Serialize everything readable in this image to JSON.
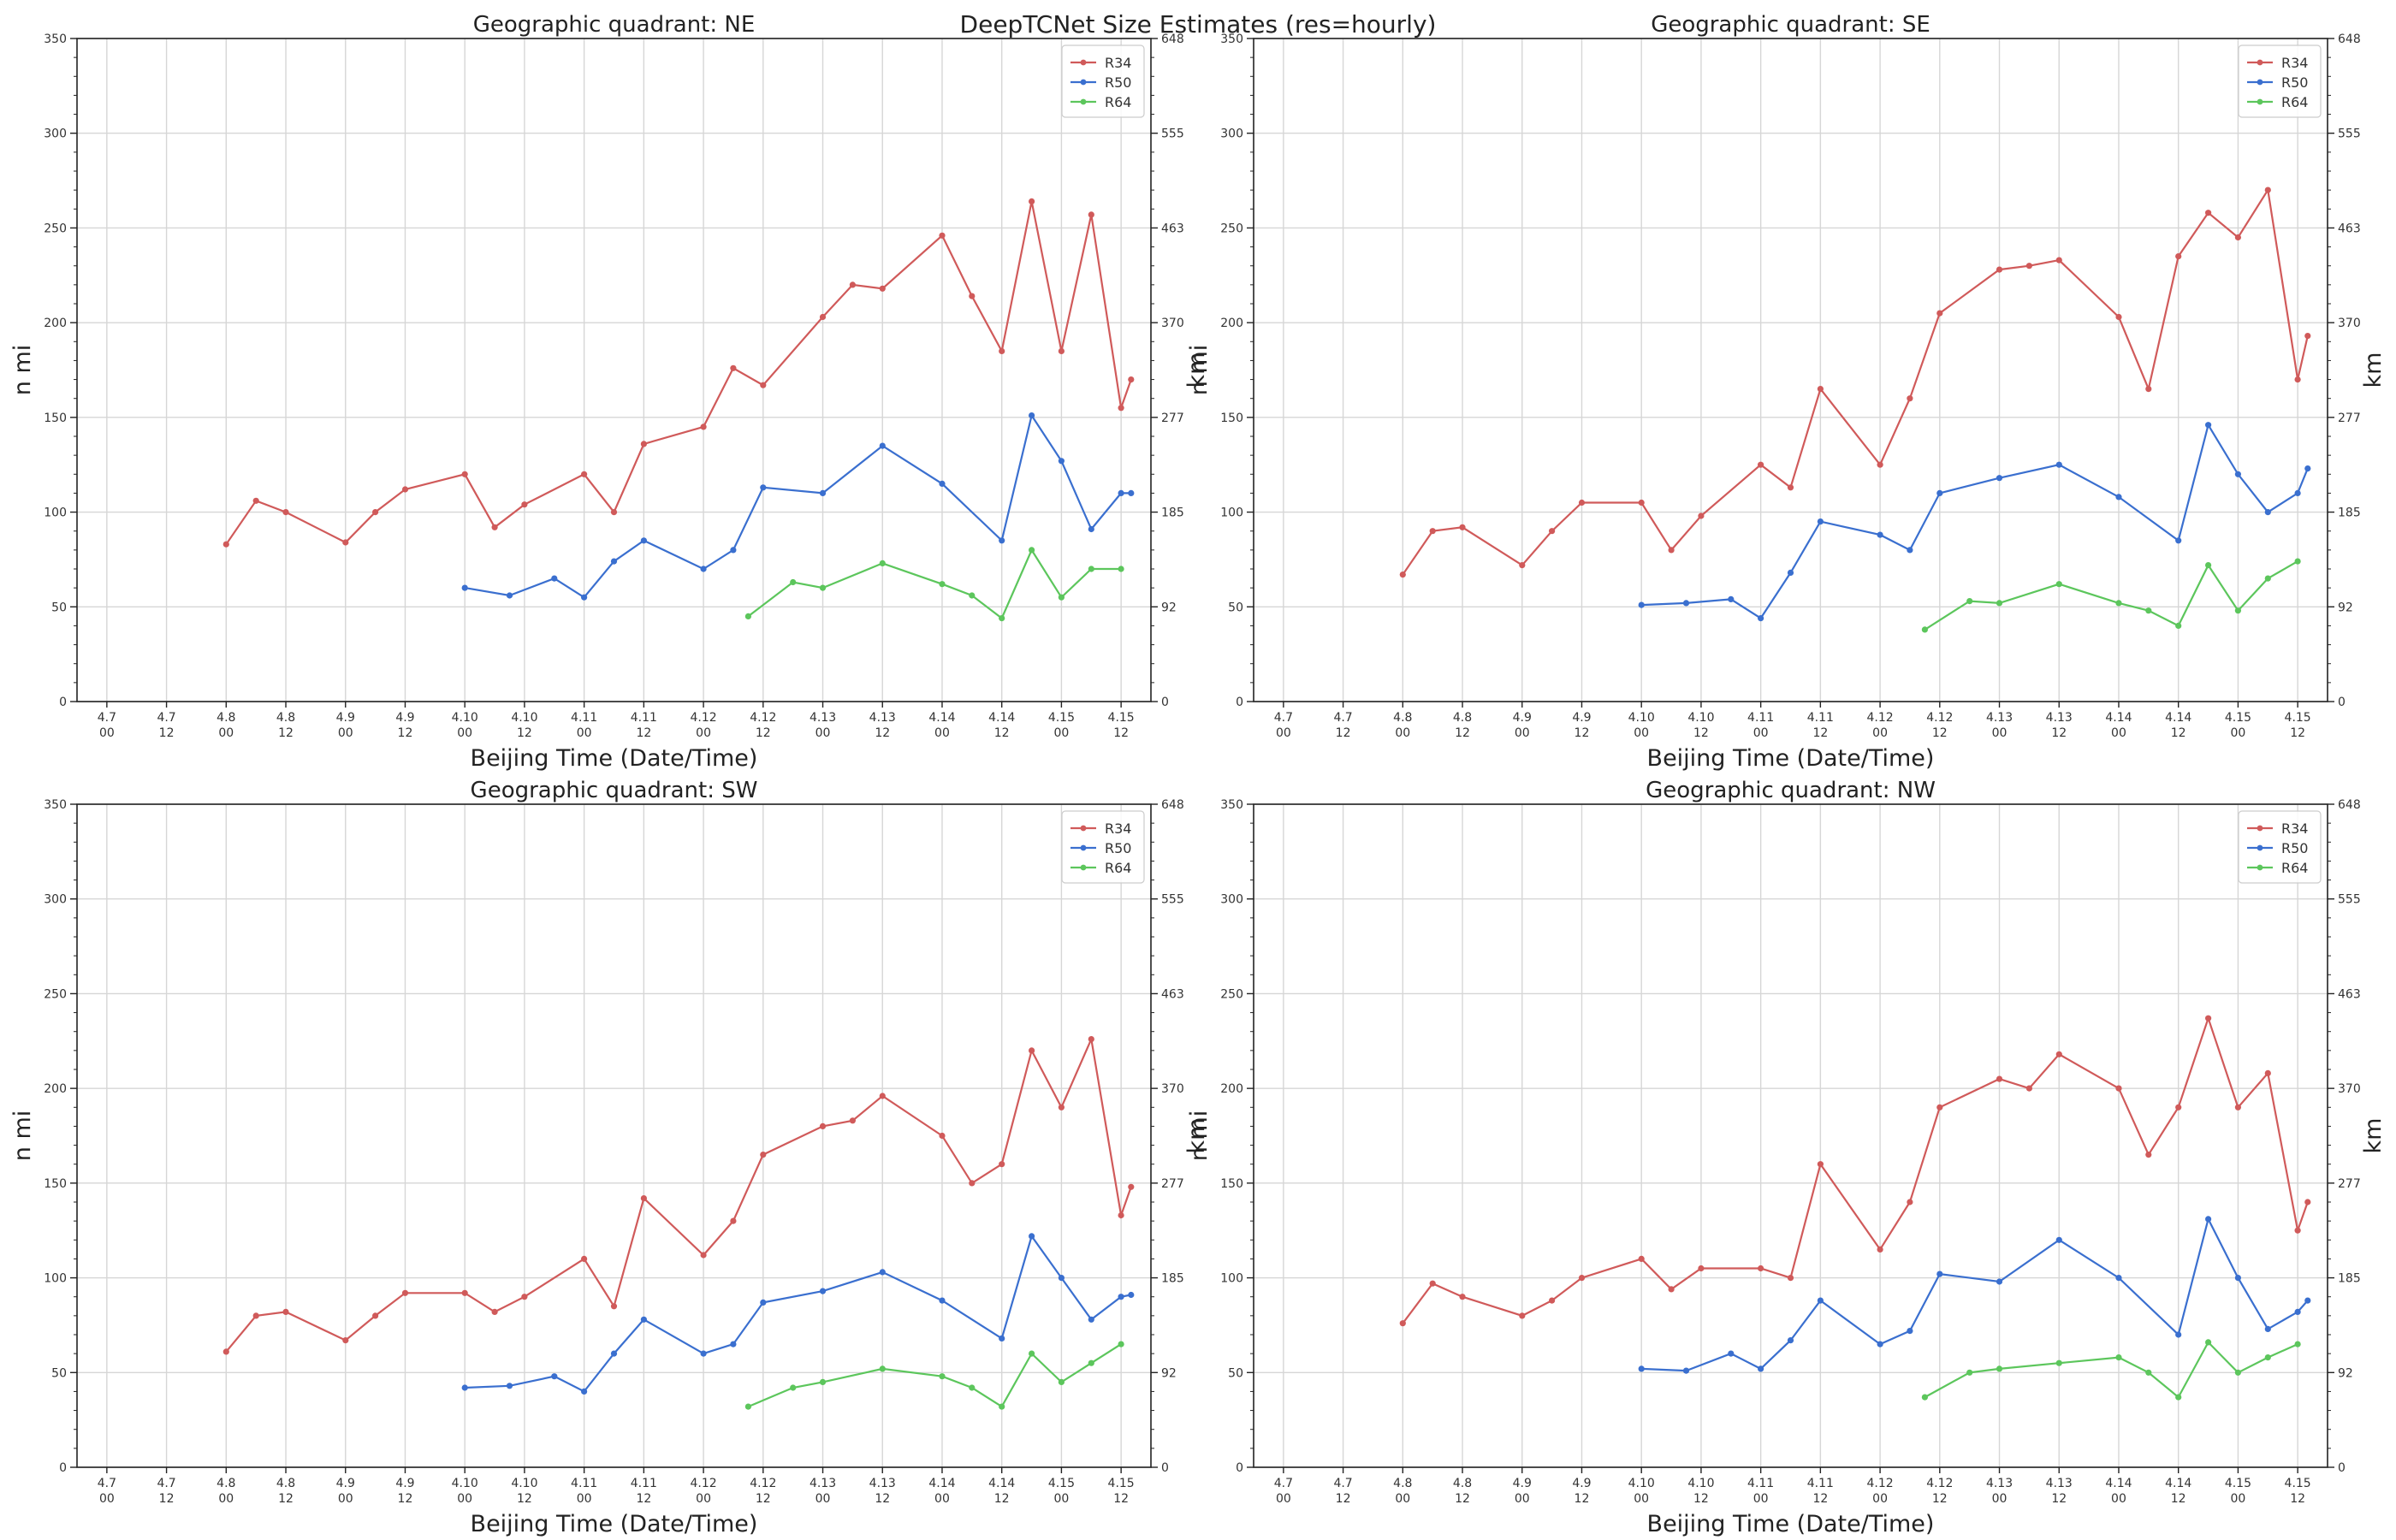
{
  "figure": {
    "title": "DeepTCNet Size Estimates (res=hourly)"
  },
  "chart_data": [
    {
      "type": "line",
      "title": "Geographic quadrant: NE",
      "xlabel": "Beijing Time (Date/Time)",
      "ylabel": "n mi",
      "y2label": "km",
      "ylim": [
        0,
        350
      ],
      "y_ticks": [
        "0",
        "50",
        "100",
        "150",
        "200",
        "250",
        "300",
        "350"
      ],
      "y2_ticks": [
        "0",
        "92",
        "185",
        "277",
        "370",
        "463",
        "555",
        "648"
      ],
      "x_ticks": [
        {
          "date": "4.7",
          "time": "00"
        },
        {
          "date": "4.7",
          "time": "12"
        },
        {
          "date": "4.8",
          "time": "00"
        },
        {
          "date": "4.8",
          "time": "12"
        },
        {
          "date": "4.9",
          "time": "00"
        },
        {
          "date": "4.9",
          "time": "12"
        },
        {
          "date": "4.10",
          "time": "00"
        },
        {
          "date": "4.10",
          "time": "12"
        },
        {
          "date": "4.11",
          "time": "00"
        },
        {
          "date": "4.11",
          "time": "12"
        },
        {
          "date": "4.12",
          "time": "00"
        },
        {
          "date": "4.12",
          "time": "12"
        },
        {
          "date": "4.13",
          "time": "00"
        },
        {
          "date": "4.13",
          "time": "12"
        },
        {
          "date": "4.14",
          "time": "00"
        },
        {
          "date": "4.14",
          "time": "12"
        },
        {
          "date": "4.15",
          "time": "00"
        },
        {
          "date": "4.15",
          "time": "12"
        }
      ],
      "grid": true,
      "legend": "top-right",
      "series": [
        {
          "name": "R34",
          "color": "#d05a5a",
          "x": [
            "4.8 00",
            "4.8 06",
            "4.8 12",
            "4.9 00",
            "4.9 06",
            "4.9 12",
            "4.10 00",
            "4.10 06",
            "4.10 12",
            "4.11 00",
            "4.11 06",
            "4.11 12",
            "4.12 00",
            "4.12 06",
            "4.12 12",
            "4.13 00",
            "4.13 06",
            "4.13 12",
            "4.14 00",
            "4.14 06",
            "4.14 12",
            "4.14 18",
            "4.15 00",
            "4.15 06",
            "4.15 12",
            "4.15 14"
          ],
          "values": [
            83,
            106,
            100,
            84,
            100,
            112,
            120,
            92,
            104,
            120,
            100,
            136,
            145,
            176,
            167,
            203,
            220,
            218,
            246,
            214,
            185,
            264,
            185,
            257,
            155,
            170
          ]
        },
        {
          "name": "R50",
          "color": "#3a6fcf",
          "x": [
            "4.10 00",
            "4.10 09",
            "4.10 18",
            "4.11 00",
            "4.11 06",
            "4.11 12",
            "4.12 00",
            "4.12 06",
            "4.12 12",
            "4.13 00",
            "4.13 12",
            "4.14 00",
            "4.14 12",
            "4.14 18",
            "4.15 00",
            "4.15 06",
            "4.15 12",
            "4.15 14"
          ],
          "values": [
            60,
            56,
            65,
            55,
            74,
            85,
            70,
            80,
            113,
            110,
            135,
            115,
            85,
            151,
            127,
            91,
            110,
            110
          ]
        },
        {
          "name": "R64",
          "color": "#5cc65c",
          "x": [
            "4.12 09",
            "4.12 18",
            "4.13 00",
            "4.13 12",
            "4.14 00",
            "4.14 06",
            "4.14 12",
            "4.14 18",
            "4.15 00",
            "4.15 06",
            "4.15 12"
          ],
          "values": [
            45,
            63,
            60,
            73,
            62,
            56,
            44,
            80,
            55,
            70,
            70
          ]
        }
      ]
    },
    {
      "type": "line",
      "title": "Geographic quadrant: SE",
      "xlabel": "Beijing Time (Date/Time)",
      "ylabel": "n mi",
      "y2label": "km",
      "ylim": [
        0,
        350
      ],
      "y_ticks": [
        "0",
        "50",
        "100",
        "150",
        "200",
        "250",
        "300",
        "350"
      ],
      "y2_ticks": [
        "0",
        "92",
        "185",
        "277",
        "370",
        "463",
        "555",
        "648"
      ],
      "x_ticks": [
        {
          "date": "4.7",
          "time": "00"
        },
        {
          "date": "4.7",
          "time": "12"
        },
        {
          "date": "4.8",
          "time": "00"
        },
        {
          "date": "4.8",
          "time": "12"
        },
        {
          "date": "4.9",
          "time": "00"
        },
        {
          "date": "4.9",
          "time": "12"
        },
        {
          "date": "4.10",
          "time": "00"
        },
        {
          "date": "4.10",
          "time": "12"
        },
        {
          "date": "4.11",
          "time": "00"
        },
        {
          "date": "4.11",
          "time": "12"
        },
        {
          "date": "4.12",
          "time": "00"
        },
        {
          "date": "4.12",
          "time": "12"
        },
        {
          "date": "4.13",
          "time": "00"
        },
        {
          "date": "4.13",
          "time": "12"
        },
        {
          "date": "4.14",
          "time": "00"
        },
        {
          "date": "4.14",
          "time": "12"
        },
        {
          "date": "4.15",
          "time": "00"
        },
        {
          "date": "4.15",
          "time": "12"
        }
      ],
      "grid": true,
      "legend": "top-right",
      "series": [
        {
          "name": "R34",
          "color": "#d05a5a",
          "x": [
            "4.8 00",
            "4.8 06",
            "4.8 12",
            "4.9 00",
            "4.9 06",
            "4.9 12",
            "4.10 00",
            "4.10 06",
            "4.10 12",
            "4.11 00",
            "4.11 06",
            "4.11 12",
            "4.12 00",
            "4.12 06",
            "4.12 12",
            "4.13 00",
            "4.13 06",
            "4.13 12",
            "4.14 00",
            "4.14 06",
            "4.14 12",
            "4.14 18",
            "4.15 00",
            "4.15 06",
            "4.15 12",
            "4.15 14"
          ],
          "values": [
            67,
            90,
            92,
            72,
            90,
            105,
            105,
            80,
            98,
            125,
            113,
            165,
            125,
            160,
            205,
            228,
            230,
            233,
            203,
            165,
            235,
            258,
            245,
            270,
            170,
            193
          ]
        },
        {
          "name": "R50",
          "color": "#3a6fcf",
          "x": [
            "4.10 00",
            "4.10 09",
            "4.10 18",
            "4.11 00",
            "4.11 06",
            "4.11 12",
            "4.12 00",
            "4.12 06",
            "4.12 12",
            "4.13 00",
            "4.13 12",
            "4.14 00",
            "4.14 12",
            "4.14 18",
            "4.15 00",
            "4.15 06",
            "4.15 12",
            "4.15 14"
          ],
          "values": [
            51,
            52,
            54,
            44,
            68,
            95,
            88,
            80,
            110,
            118,
            125,
            108,
            85,
            146,
            120,
            100,
            110,
            123
          ]
        },
        {
          "name": "R64",
          "color": "#5cc65c",
          "x": [
            "4.12 09",
            "4.12 18",
            "4.13 00",
            "4.13 12",
            "4.14 00",
            "4.14 06",
            "4.14 12",
            "4.14 18",
            "4.15 00",
            "4.15 06",
            "4.15 12"
          ],
          "values": [
            38,
            53,
            52,
            62,
            52,
            48,
            40,
            72,
            48,
            65,
            74
          ]
        }
      ]
    },
    {
      "type": "line",
      "title": "Geographic quadrant: SW",
      "xlabel": "Beijing Time (Date/Time)",
      "ylabel": "n mi",
      "y2label": "km",
      "ylim": [
        0,
        350
      ],
      "y_ticks": [
        "0",
        "50",
        "100",
        "150",
        "200",
        "250",
        "300",
        "350"
      ],
      "y2_ticks": [
        "0",
        "92",
        "185",
        "277",
        "370",
        "463",
        "555",
        "648"
      ],
      "x_ticks": [
        {
          "date": "4.7",
          "time": "00"
        },
        {
          "date": "4.7",
          "time": "12"
        },
        {
          "date": "4.8",
          "time": "00"
        },
        {
          "date": "4.8",
          "time": "12"
        },
        {
          "date": "4.9",
          "time": "00"
        },
        {
          "date": "4.9",
          "time": "12"
        },
        {
          "date": "4.10",
          "time": "00"
        },
        {
          "date": "4.10",
          "time": "12"
        },
        {
          "date": "4.11",
          "time": "00"
        },
        {
          "date": "4.11",
          "time": "12"
        },
        {
          "date": "4.12",
          "time": "00"
        },
        {
          "date": "4.12",
          "time": "12"
        },
        {
          "date": "4.13",
          "time": "00"
        },
        {
          "date": "4.13",
          "time": "12"
        },
        {
          "date": "4.14",
          "time": "00"
        },
        {
          "date": "4.14",
          "time": "12"
        },
        {
          "date": "4.15",
          "time": "00"
        },
        {
          "date": "4.15",
          "time": "12"
        }
      ],
      "grid": true,
      "legend": "top-right",
      "series": [
        {
          "name": "R34",
          "color": "#d05a5a",
          "x": [
            "4.8 00",
            "4.8 06",
            "4.8 12",
            "4.9 00",
            "4.9 06",
            "4.9 12",
            "4.10 00",
            "4.10 06",
            "4.10 12",
            "4.11 00",
            "4.11 06",
            "4.11 12",
            "4.12 00",
            "4.12 06",
            "4.12 12",
            "4.13 00",
            "4.13 06",
            "4.13 12",
            "4.14 00",
            "4.14 06",
            "4.14 12",
            "4.14 18",
            "4.15 00",
            "4.15 06",
            "4.15 12",
            "4.15 14"
          ],
          "values": [
            61,
            80,
            82,
            67,
            80,
            92,
            92,
            82,
            90,
            110,
            85,
            142,
            112,
            130,
            165,
            180,
            183,
            196,
            175,
            150,
            160,
            220,
            190,
            226,
            133,
            148
          ]
        },
        {
          "name": "R50",
          "color": "#3a6fcf",
          "x": [
            "4.10 00",
            "4.10 09",
            "4.10 18",
            "4.11 00",
            "4.11 06",
            "4.11 12",
            "4.12 00",
            "4.12 06",
            "4.12 12",
            "4.13 00",
            "4.13 12",
            "4.14 00",
            "4.14 12",
            "4.14 18",
            "4.15 00",
            "4.15 06",
            "4.15 12",
            "4.15 14"
          ],
          "values": [
            42,
            43,
            48,
            40,
            60,
            78,
            60,
            65,
            87,
            93,
            103,
            88,
            68,
            122,
            100,
            78,
            90,
            91
          ]
        },
        {
          "name": "R64",
          "color": "#5cc65c",
          "x": [
            "4.12 09",
            "4.12 18",
            "4.13 00",
            "4.13 12",
            "4.14 00",
            "4.14 06",
            "4.14 12",
            "4.14 18",
            "4.15 00",
            "4.15 06",
            "4.15 12"
          ],
          "values": [
            32,
            42,
            45,
            52,
            48,
            42,
            32,
            60,
            45,
            55,
            65
          ]
        }
      ]
    },
    {
      "type": "line",
      "title": "Geographic quadrant: NW",
      "xlabel": "Beijing Time (Date/Time)",
      "ylabel": "n mi",
      "y2label": "km",
      "ylim": [
        0,
        350
      ],
      "y_ticks": [
        "0",
        "50",
        "100",
        "150",
        "200",
        "250",
        "300",
        "350"
      ],
      "y2_ticks": [
        "0",
        "92",
        "185",
        "277",
        "370",
        "463",
        "555",
        "648"
      ],
      "x_ticks": [
        {
          "date": "4.7",
          "time": "00"
        },
        {
          "date": "4.7",
          "time": "12"
        },
        {
          "date": "4.8",
          "time": "00"
        },
        {
          "date": "4.8",
          "time": "12"
        },
        {
          "date": "4.9",
          "time": "00"
        },
        {
          "date": "4.9",
          "time": "12"
        },
        {
          "date": "4.10",
          "time": "00"
        },
        {
          "date": "4.10",
          "time": "12"
        },
        {
          "date": "4.11",
          "time": "00"
        },
        {
          "date": "4.11",
          "time": "12"
        },
        {
          "date": "4.12",
          "time": "00"
        },
        {
          "date": "4.12",
          "time": "12"
        },
        {
          "date": "4.13",
          "time": "00"
        },
        {
          "date": "4.13",
          "time": "12"
        },
        {
          "date": "4.14",
          "time": "00"
        },
        {
          "date": "4.14",
          "time": "12"
        },
        {
          "date": "4.15",
          "time": "00"
        },
        {
          "date": "4.15",
          "time": "12"
        }
      ],
      "grid": true,
      "legend": "top-right",
      "series": [
        {
          "name": "R34",
          "color": "#d05a5a",
          "x": [
            "4.8 00",
            "4.8 06",
            "4.8 12",
            "4.9 00",
            "4.9 06",
            "4.9 12",
            "4.10 00",
            "4.10 06",
            "4.10 12",
            "4.11 00",
            "4.11 06",
            "4.11 12",
            "4.12 00",
            "4.12 06",
            "4.12 12",
            "4.13 00",
            "4.13 06",
            "4.13 12",
            "4.14 00",
            "4.14 06",
            "4.14 12",
            "4.14 18",
            "4.15 00",
            "4.15 06",
            "4.15 12",
            "4.15 14"
          ],
          "values": [
            76,
            97,
            90,
            80,
            88,
            100,
            110,
            94,
            105,
            105,
            100,
            160,
            115,
            140,
            190,
            205,
            200,
            218,
            200,
            165,
            190,
            237,
            190,
            208,
            125,
            140
          ]
        },
        {
          "name": "R50",
          "color": "#3a6fcf",
          "x": [
            "4.10 00",
            "4.10 09",
            "4.10 18",
            "4.11 00",
            "4.11 06",
            "4.11 12",
            "4.12 00",
            "4.12 06",
            "4.12 12",
            "4.13 00",
            "4.13 12",
            "4.14 00",
            "4.14 12",
            "4.14 18",
            "4.15 00",
            "4.15 06",
            "4.15 12",
            "4.15 14"
          ],
          "values": [
            52,
            51,
            60,
            52,
            67,
            88,
            65,
            72,
            102,
            98,
            120,
            100,
            70,
            131,
            100,
            73,
            82,
            88
          ]
        },
        {
          "name": "R64",
          "color": "#5cc65c",
          "x": [
            "4.12 09",
            "4.12 18",
            "4.13 00",
            "4.13 12",
            "4.14 00",
            "4.14 06",
            "4.14 12",
            "4.14 18",
            "4.15 00",
            "4.15 06",
            "4.15 12"
          ],
          "values": [
            37,
            50,
            52,
            55,
            58,
            50,
            37,
            66,
            50,
            58,
            65
          ]
        }
      ]
    }
  ]
}
